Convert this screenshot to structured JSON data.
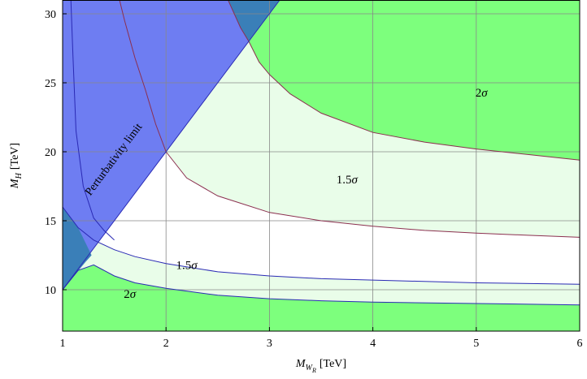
{
  "chart_data": {
    "type": "area",
    "xlabel": "M",
    "xlabel_sub": "W",
    "xlabel_subsub": "R",
    "xlabel_unit": "[TeV]",
    "ylabel": "M",
    "ylabel_sub": "H",
    "ylabel_unit": "[TeV]",
    "xlim": [
      1,
      6
    ],
    "ylim": [
      7,
      31
    ],
    "xticks": [
      1,
      2,
      3,
      4,
      5,
      6
    ],
    "yticks": [
      10,
      15,
      20,
      25,
      30
    ],
    "grid": true,
    "colors": {
      "significance_2sigma": "#7dff7d",
      "significance_1p5sigma": "#e9fde9",
      "no_sensitivity": "#ffffff",
      "perturbativity_excluded": "#6e7df2",
      "overlap": "#3a7fb8",
      "blue_curve": "#2a2ab4",
      "red_curve": "#8b2f4f",
      "grid": "#888888"
    },
    "perturbativity_boundary": {
      "label": "Perturbativity limit",
      "x": [
        1.0,
        3.1
      ],
      "y": [
        10.0,
        31.0
      ]
    },
    "series": [
      {
        "region": "upper-2sigma",
        "x": [
          2.6,
          2.72,
          2.8,
          2.9,
          3.0,
          3.2,
          3.5,
          4.0,
          4.5,
          5.0,
          5.5,
          6.0
        ],
        "y": [
          31.0,
          29.0,
          28.0,
          26.5,
          25.6,
          24.2,
          22.8,
          21.4,
          20.7,
          20.2,
          19.8,
          19.4
        ]
      },
      {
        "region": "upper-1.5sigma",
        "x": [
          2.0,
          2.2,
          2.5,
          3.0,
          3.5,
          4.0,
          4.5,
          5.0,
          5.5,
          6.0
        ],
        "y": [
          20.0,
          18.1,
          16.8,
          15.6,
          15.0,
          14.6,
          14.3,
          14.1,
          13.95,
          13.8
        ]
      },
      {
        "region": "lower-1.5sigma",
        "x": [
          1.0,
          1.15,
          1.3,
          1.5,
          1.7,
          2.0,
          2.5,
          3.0,
          3.5,
          4.0,
          5.0,
          6.0
        ],
        "y": [
          16.0,
          14.5,
          13.6,
          12.9,
          12.4,
          11.9,
          11.3,
          11.0,
          10.8,
          10.7,
          10.5,
          10.4
        ]
      },
      {
        "region": "lower-2sigma",
        "x": [
          1.0,
          1.15,
          1.3,
          1.5,
          1.7,
          2.0,
          2.5,
          3.0,
          3.5,
          4.0,
          5.0,
          6.0
        ],
        "y": [
          10.0,
          11.4,
          11.8,
          11.0,
          10.5,
          10.1,
          9.6,
          9.35,
          9.2,
          9.1,
          9.0,
          8.9
        ]
      },
      {
        "region": "inner-blue",
        "x": [
          1.08,
          1.1,
          1.13,
          1.2,
          1.3,
          1.4,
          1.5
        ],
        "y": [
          31.0,
          27.0,
          21.5,
          17.5,
          15.2,
          14.3,
          13.6
        ]
      },
      {
        "region": "inner-red",
        "x": [
          1.55,
          1.6,
          1.7,
          1.8,
          1.9,
          2.0
        ],
        "y": [
          31.0,
          29.5,
          26.8,
          24.5,
          22.0,
          20.0
        ]
      }
    ],
    "labels": [
      {
        "text": "2σ",
        "x": 5.05,
        "y": 24.0
      },
      {
        "text": "1.5σ",
        "x": 3.75,
        "y": 17.7
      },
      {
        "text": "1.5σ",
        "x": 2.2,
        "y": 11.5
      },
      {
        "text": "2σ",
        "x": 1.65,
        "y": 9.4
      }
    ]
  }
}
